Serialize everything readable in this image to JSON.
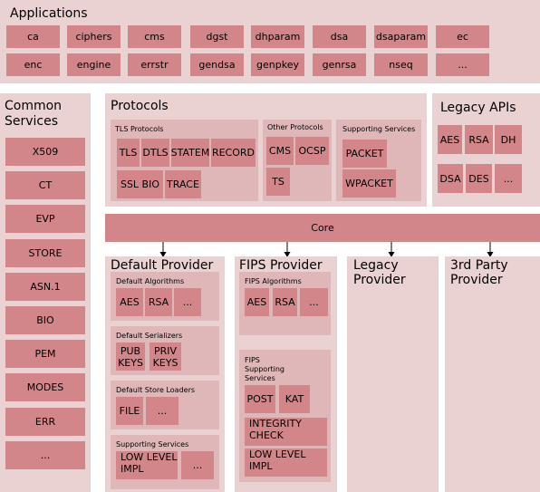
{
  "applications": {
    "title": "Applications",
    "items": [
      "ca",
      "ciphers",
      "cms",
      "dgst",
      "dhparam",
      "dsa",
      "dsaparam",
      "ec",
      "enc",
      "engine",
      "errstr",
      "gendsa",
      "genpkey",
      "genrsa",
      "nseq",
      "..."
    ]
  },
  "common_services": {
    "title_line1": "Common",
    "title_line2": "Services",
    "items": [
      "X509",
      "CT",
      "EVP",
      "STORE",
      "ASN.1",
      "BIO",
      "PEM",
      "MODES",
      "ERR",
      "..."
    ]
  },
  "protocols": {
    "title": "Protocols",
    "tls": {
      "title": "TLS Protocols",
      "items": [
        "TLS",
        "DTLS",
        "STATEM",
        "RECORD",
        "SSL BIO",
        "TRACE"
      ]
    },
    "other": {
      "title": "Other Protocols",
      "items": [
        "CMS",
        "OCSP",
        "TS"
      ]
    },
    "supporting": {
      "title": "Supporting Services",
      "items": [
        "PACKET",
        "WPACKET"
      ]
    }
  },
  "legacy_apis": {
    "title": "Legacy APIs",
    "items": [
      "AES",
      "RSA",
      "DH",
      "DSA",
      "DES",
      "..."
    ]
  },
  "core": {
    "label": "Core"
  },
  "default_provider": {
    "title": "Default Provider",
    "algorithms": {
      "title": "Default Algorithms",
      "items": [
        "AES",
        "RSA",
        "..."
      ]
    },
    "serializers": {
      "title": "Default Serializers",
      "pub_1": "PUB",
      "pub_2": "KEYS",
      "priv_1": "PRIV",
      "priv_2": "KEYS"
    },
    "store_loaders": {
      "title": "Default Store Loaders",
      "items": [
        "FILE",
        "..."
      ]
    },
    "supporting": {
      "title": "Supporting Services",
      "impl_1": "LOW LEVEL",
      "impl_2": "IMPL",
      "more": "..."
    }
  },
  "fips_provider": {
    "title": "FIPS Provider",
    "algorithms": {
      "title": "FIPS Algorithms",
      "items": [
        "AES",
        "RSA",
        "..."
      ]
    },
    "supporting": {
      "title_1": "FIPS",
      "title_2": "Supporting",
      "title_3": "Services",
      "items": [
        "POST",
        "KAT"
      ],
      "integrity_1": "INTEGRITY",
      "integrity_2": "CHECK",
      "impl_1": "LOW LEVEL",
      "impl_2": "IMPL"
    }
  },
  "legacy_provider": {
    "title_1": "Legacy",
    "title_2": "Provider"
  },
  "third_party_provider": {
    "title_1": "3rd Party",
    "title_2": "Provider"
  }
}
